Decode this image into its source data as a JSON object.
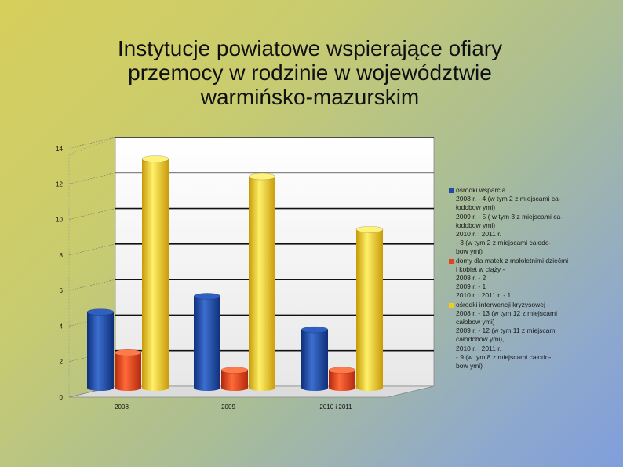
{
  "slide": {
    "title": "Instytucje  powiatowe wspierające ofiary\nprzemocy w rodzinie w województwie\nwarmińsko-mazurskim"
  },
  "colors": {
    "blue": "#1f4aa8",
    "red": "#e8401a",
    "yellow": "#f2cc1a"
  },
  "chart_data": {
    "type": "bar",
    "categories": [
      "2008",
      "2009",
      "2010  i  2011"
    ],
    "series": [
      {
        "name": "ośrodki wsparcia",
        "color": "#1f4aa8",
        "values": [
          4.3,
          5.2,
          3.3
        ]
      },
      {
        "name": "domy dla matek z małoletnimi dziećmi",
        "color": "#e8401a",
        "values": [
          2,
          1,
          1
        ]
      },
      {
        "name": "ośrodki interwencji kryzysowej",
        "color": "#f2cc1a",
        "values": [
          13,
          12,
          9
        ]
      }
    ],
    "yticks": [
      "0",
      "2",
      "4",
      "6",
      "8",
      "10",
      "12",
      "14"
    ],
    "ylim": [
      0,
      14
    ],
    "grid": true,
    "legend_position": "right",
    "legend": [
      {
        "color": "#1f4aa8",
        "lines": [
          "ośrodki wsparcia",
          "2008 r.  - 4  (w  tym 2 z miejscami ca-",
          "łodobow ymi)",
          "2009 r.  - 5 ( w tym 3 z miejscami ca-",
          "łodobow ymi)",
          "2010 r.  i 2011 r.",
          " - 3  (w  tym 2 z miejscami całodo-",
          "bow ymi)"
        ]
      },
      {
        "color": "#e8401a",
        "lines": [
          "domy dla matek z małoletnimi dziećmi",
          "i kobiet w  ciąży                         -",
          "2008 r.  - 2",
          "2009 r.  - 1",
          "2010 r.  i 2011 r.  - 1"
        ]
      },
      {
        "color": "#f2cc1a",
        "lines": [
          "ośrodki interwencji kryzysowej -",
          "2008 r.  - 13 (w  tym 12 z miejscami",
          "całobow ymi)",
          "2009 r.  - 12  (w  tym 11 z miejscami",
          "całodobow ymi),",
          "2010 r.  i 2011 r.",
          " - 9  (w  tym  8 z miejscami całodo-",
          "bow ymi)"
        ]
      }
    ]
  }
}
